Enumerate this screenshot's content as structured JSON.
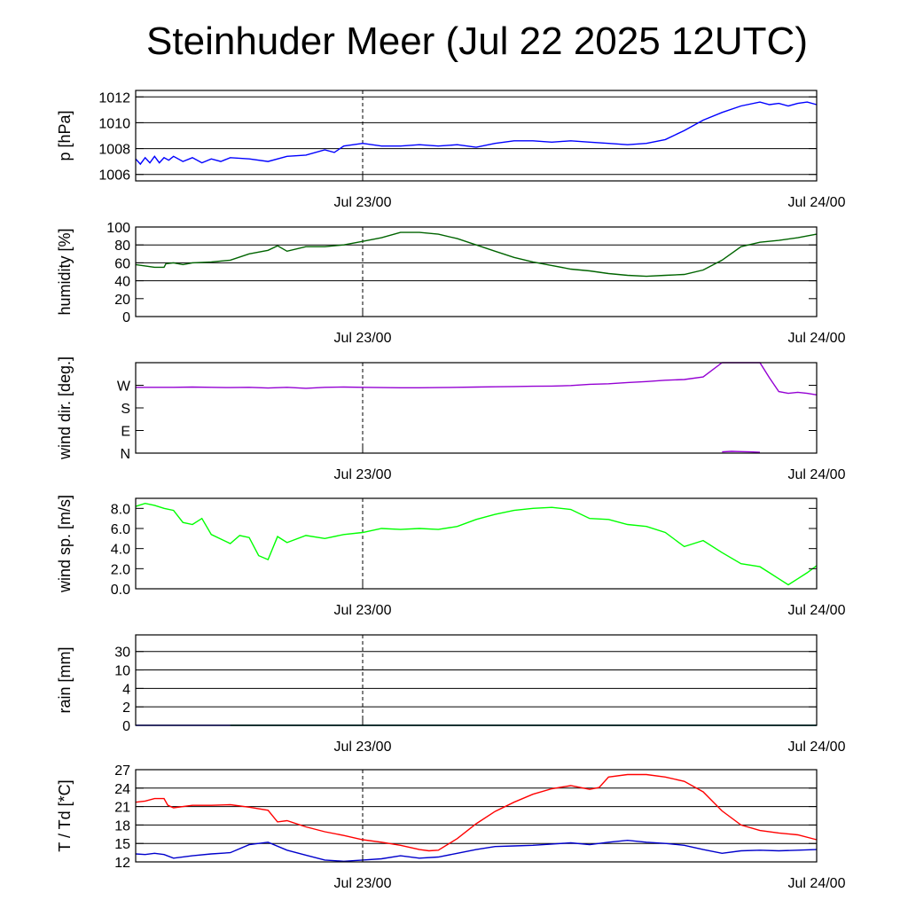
{
  "title": "Steinhuder Meer (Jul 22 2025 12UTC)",
  "chart_data": [
    {
      "type": "line",
      "ylabel": "p [hPa]",
      "ylim": [
        1005.5,
        1012.5
      ],
      "yticks": [
        "1006",
        "1008",
        "1010",
        "1012"
      ],
      "ytick_values": [
        1006,
        1008,
        1010,
        1012
      ],
      "hgrid": [
        1006,
        1008,
        1010,
        1012
      ],
      "xlim": [
        0,
        36
      ],
      "xticks": [
        "Jul 23/00",
        "Jul 24/00"
      ],
      "xtick_values": [
        12,
        36
      ],
      "series": [
        {
          "color": "#0000ff",
          "x": [
            0,
            0.25,
            0.5,
            0.75,
            1.0,
            1.25,
            1.5,
            1.75,
            2,
            2.5,
            3,
            3.5,
            4,
            4.5,
            5,
            6,
            7,
            8,
            9,
            10,
            10.5,
            11,
            12,
            13,
            14,
            15,
            16,
            17,
            18,
            19,
            20,
            21,
            22,
            23,
            24,
            25,
            26,
            27,
            28,
            29,
            30,
            31,
            32,
            33,
            33.5,
            34,
            34.5,
            35,
            35.5,
            36
          ],
          "values": [
            1007.2,
            1006.8,
            1007.3,
            1006.9,
            1007.4,
            1006.9,
            1007.3,
            1007.1,
            1007.4,
            1007.0,
            1007.3,
            1006.9,
            1007.2,
            1007.0,
            1007.3,
            1007.2,
            1007.0,
            1007.4,
            1007.5,
            1007.9,
            1007.7,
            1008.2,
            1008.4,
            1008.2,
            1008.2,
            1008.3,
            1008.2,
            1008.3,
            1008.1,
            1008.4,
            1008.6,
            1008.6,
            1008.5,
            1008.6,
            1008.5,
            1008.4,
            1008.3,
            1008.4,
            1008.7,
            1009.4,
            1010.2,
            1010.8,
            1011.3,
            1011.6,
            1011.4,
            1011.5,
            1011.3,
            1011.5,
            1011.6,
            1011.4
          ]
        }
      ]
    },
    {
      "type": "line",
      "ylabel": "humidity [%]",
      "ylim": [
        0,
        100
      ],
      "yticks": [
        "0",
        "20",
        "40",
        "60",
        "80",
        "100"
      ],
      "ytick_values": [
        0,
        20,
        40,
        60,
        80,
        100
      ],
      "hgrid": [
        40,
        60,
        80
      ],
      "xlim": [
        0,
        36
      ],
      "xticks": [
        "Jul 23/00",
        "Jul 24/00"
      ],
      "xtick_values": [
        12,
        36
      ],
      "series": [
        {
          "color": "#006400",
          "x": [
            0,
            1,
            1.5,
            1.6,
            2,
            2.5,
            3,
            4,
            5,
            6,
            7,
            7.5,
            8,
            9,
            10,
            11,
            12,
            13,
            14,
            15,
            16,
            17,
            18,
            19,
            20,
            21,
            22,
            23,
            24,
            25,
            26,
            27,
            28,
            29,
            30,
            31,
            32,
            33,
            34,
            35,
            36
          ],
          "values": [
            58,
            55,
            55,
            59,
            60,
            58,
            60,
            61,
            63,
            70,
            74,
            79,
            73,
            78,
            78,
            80,
            84,
            88,
            94,
            94,
            92,
            87,
            80,
            73,
            66,
            61,
            57,
            53,
            51,
            48,
            46,
            45,
            46,
            47,
            52,
            63,
            78,
            83,
            85,
            88,
            92
          ]
        }
      ]
    },
    {
      "type": "scatter",
      "ylabel": "wind dir. [deg.]",
      "ylim": [
        0,
        360
      ],
      "yticks": [
        "N",
        "E",
        "S",
        "W"
      ],
      "ytick_values": [
        0,
        90,
        180,
        270
      ],
      "hgrid": [],
      "xlim": [
        0,
        36
      ],
      "xticks": [
        "Jul 23/00",
        "Jul 24/00"
      ],
      "xtick_values": [
        12,
        36
      ],
      "series": [
        {
          "color": "#9400d3",
          "x": [
            0,
            1,
            2,
            3,
            4,
            5,
            6,
            7,
            8,
            9,
            10,
            11,
            12,
            13,
            14,
            15,
            16,
            17,
            18,
            19,
            20,
            21,
            22,
            23,
            24,
            25,
            26,
            27,
            28,
            29,
            30,
            31
          ],
          "values": [
            262,
            262,
            262,
            263,
            262,
            261,
            262,
            259,
            262,
            258,
            262,
            263,
            262,
            261,
            260,
            260,
            261,
            262,
            263,
            264,
            265,
            266,
            267,
            269,
            274,
            276,
            281,
            285,
            290,
            293,
            303,
            360
          ]
        },
        {
          "color": "#9400d3",
          "x": [
            31,
            32,
            33,
            33.5,
            34,
            34.5,
            35,
            35.5,
            36
          ],
          "values": [
            360,
            360,
            360,
            300,
            245,
            238,
            242,
            238,
            232
          ]
        },
        {
          "color": "#9400d3",
          "x": [
            31,
            31.5,
            32,
            32.5,
            33
          ],
          "values": [
            5,
            7,
            6,
            5,
            3
          ]
        }
      ]
    },
    {
      "type": "line",
      "ylabel": "wind sp. [m/s]",
      "ylim": [
        0,
        9
      ],
      "yticks": [
        "0.0",
        "2.0",
        "4.0",
        "6.0",
        "8.0"
      ],
      "ytick_values": [
        0,
        2,
        4,
        6,
        8
      ],
      "hgrid": [],
      "xlim": [
        0,
        36
      ],
      "xticks": [
        "Jul 23/00",
        "Jul 24/00"
      ],
      "xtick_values": [
        12,
        36
      ],
      "series": [
        {
          "color": "#00ff00",
          "x": [
            0,
            0.5,
            1,
            1.5,
            2,
            2.5,
            3,
            3.5,
            4,
            5,
            5.5,
            6,
            6.5,
            7,
            7.5,
            8,
            9,
            10,
            11,
            12,
            13,
            14,
            15,
            16,
            17,
            18,
            19,
            20,
            21,
            22,
            23,
            24,
            25,
            26,
            27,
            28,
            29,
            30,
            31,
            32,
            33,
            33.5,
            34,
            34.5,
            35,
            35.5,
            36
          ],
          "values": [
            8.2,
            8.5,
            8.3,
            8.0,
            7.8,
            6.6,
            6.4,
            7.0,
            5.4,
            4.5,
            5.3,
            5.1,
            3.3,
            2.9,
            5.2,
            4.6,
            5.3,
            5.0,
            5.4,
            5.6,
            6.0,
            5.9,
            6.0,
            5.9,
            6.2,
            6.9,
            7.4,
            7.8,
            8.0,
            8.1,
            7.9,
            7.0,
            6.9,
            6.4,
            6.2,
            5.6,
            4.2,
            4.8,
            3.6,
            2.5,
            2.2,
            1.6,
            1.0,
            0.4,
            1.0,
            1.6,
            2.3
          ]
        }
      ]
    },
    {
      "type": "line",
      "ylabel": "rain [mm]",
      "ylim": [
        0,
        33
      ],
      "yticks": [
        "0",
        "2",
        "4",
        "10",
        "30"
      ],
      "ytick_values": [
        0,
        2,
        4,
        10,
        30
      ],
      "yscale": "nonlinear",
      "hgrid": [
        2,
        4,
        10,
        30
      ],
      "xlim": [
        0,
        36
      ],
      "xticks": [
        "Jul 23/00",
        "Jul 24/00"
      ],
      "xtick_values": [
        12,
        36
      ],
      "series": [
        {
          "color": "#0000ff",
          "x": [
            0,
            36
          ],
          "values": [
            0,
            0
          ]
        },
        {
          "color": "#008000",
          "x": [
            5,
            36
          ],
          "values": [
            0,
            0
          ]
        }
      ]
    },
    {
      "type": "line",
      "ylabel": "T / Td [*C]",
      "ylim": [
        12,
        27
      ],
      "yticks": [
        "12",
        "15",
        "18",
        "21",
        "24",
        "27"
      ],
      "ytick_values": [
        12,
        15,
        18,
        21,
        24,
        27
      ],
      "hgrid": [
        15,
        18,
        21,
        24,
        27
      ],
      "xlim": [
        0,
        36
      ],
      "xticks": [
        "Jul 23/00",
        "Jul 24/00"
      ],
      "xtick_values": [
        12,
        36
      ],
      "series": [
        {
          "color": "#ff0000",
          "x": [
            0,
            0.5,
            1,
            1.5,
            1.7,
            2,
            3,
            4,
            5,
            6,
            7,
            7.5,
            8,
            9,
            10,
            11,
            12,
            13,
            14,
            15,
            15.5,
            16,
            17,
            18,
            19,
            20,
            21,
            22,
            23,
            24,
            24.5,
            25,
            26,
            27,
            28,
            29,
            30,
            31,
            32,
            33,
            34,
            35,
            36
          ],
          "values": [
            21.7,
            21.9,
            22.3,
            22.3,
            21.2,
            20.8,
            21.2,
            21.2,
            21.3,
            20.9,
            20.4,
            18.5,
            18.7,
            17.7,
            16.9,
            16.3,
            15.6,
            15.2,
            14.7,
            14.0,
            13.8,
            13.9,
            15.8,
            18.2,
            20.2,
            21.7,
            23.0,
            23.9,
            24.4,
            23.8,
            24.1,
            25.8,
            26.2,
            26.2,
            25.8,
            25.1,
            23.4,
            20.3,
            18.0,
            17.1,
            16.7,
            16.4,
            15.6
          ]
        },
        {
          "color": "#0000cc",
          "x": [
            0,
            0.5,
            1,
            1.5,
            2,
            3,
            4,
            5,
            6,
            7,
            8,
            9,
            10,
            11,
            12,
            13,
            14,
            15,
            16,
            17,
            18,
            19,
            20,
            21,
            22,
            23,
            24,
            25,
            26,
            27,
            28,
            29,
            30,
            31,
            32,
            33,
            34,
            35,
            36
          ],
          "values": [
            13.3,
            13.2,
            13.4,
            13.2,
            12.6,
            13.0,
            13.3,
            13.5,
            14.8,
            15.2,
            13.9,
            13.1,
            12.3,
            12.1,
            12.3,
            12.5,
            13.0,
            12.6,
            12.8,
            13.4,
            14.0,
            14.5,
            14.6,
            14.7,
            14.9,
            15.1,
            14.8,
            15.2,
            15.5,
            15.2,
            15.0,
            14.7,
            14.0,
            13.4,
            13.8,
            13.9,
            13.8,
            13.9,
            14.0
          ]
        }
      ]
    }
  ]
}
